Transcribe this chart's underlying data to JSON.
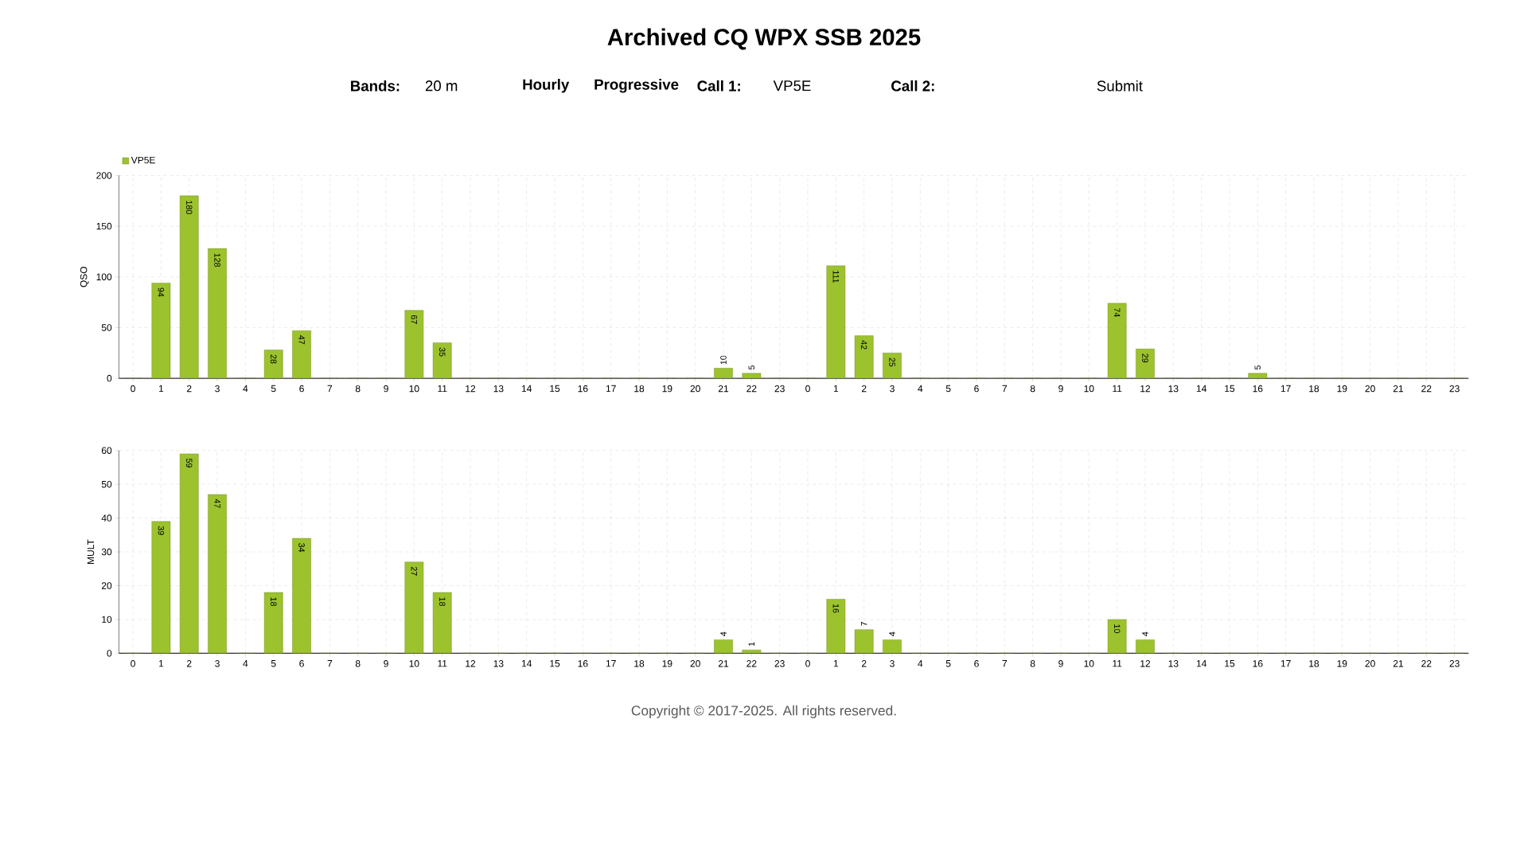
{
  "chart_data": [
    {
      "type": "bar",
      "title": "Archived CQ WPX SSB 2025",
      "ylabel": "QSO",
      "annotations": [
        "Bands:",
        "20 m",
        "Hourly",
        "Progressive",
        "Call 1:",
        "VP5E",
        "Call 2:",
        "Submit"
      ],
      "categories": [
        "0",
        "1",
        "2",
        "3",
        "4",
        "5",
        "6",
        "7",
        "8",
        "9",
        "10",
        "11",
        "12",
        "13",
        "14",
        "15",
        "16",
        "17",
        "18",
        "19",
        "20",
        "21",
        "22",
        "23",
        "0",
        "1",
        "2",
        "3",
        "4",
        "5",
        "6",
        "7",
        "8",
        "9",
        "10",
        "11",
        "12",
        "13",
        "14",
        "15",
        "16",
        "17",
        "18",
        "19",
        "20",
        "21",
        "22",
        "23"
      ],
      "series": [
        {
          "name": "VP5E",
          "color": "#9cc22e",
          "values": [
            0,
            94,
            180,
            128,
            0,
            28,
            47,
            0,
            0,
            0,
            67,
            35,
            0,
            0,
            0,
            0,
            0,
            0,
            0,
            0,
            0,
            10,
            5,
            0,
            0,
            111,
            42,
            25,
            0,
            0,
            0,
            0,
            0,
            0,
            0,
            74,
            29,
            0,
            0,
            0,
            5,
            0,
            0,
            0,
            0,
            0,
            0,
            0
          ],
          "value_labels": [
            null,
            "94",
            "180",
            "128",
            null,
            "28",
            "47",
            null,
            null,
            null,
            "67",
            "35",
            null,
            null,
            null,
            null,
            null,
            null,
            null,
            null,
            null,
            "10",
            "5",
            null,
            null,
            "111",
            "42",
            "25",
            null,
            null,
            null,
            null,
            null,
            null,
            null,
            "74",
            "29",
            null,
            null,
            null,
            "5",
            null,
            null,
            null,
            null,
            null,
            null,
            null
          ]
        }
      ],
      "ylim": [
        0,
        200
      ],
      "yticks": [
        0,
        50,
        100,
        150,
        200
      ],
      "grid": true,
      "legend": "top left"
    },
    {
      "type": "bar",
      "ylabel": "MULT",
      "annotations": [
        "Copyright © 2017-2025. All rights reserved."
      ],
      "categories": [
        "0",
        "1",
        "2",
        "3",
        "4",
        "5",
        "6",
        "7",
        "8",
        "9",
        "10",
        "11",
        "12",
        "13",
        "14",
        "15",
        "16",
        "17",
        "18",
        "19",
        "20",
        "21",
        "22",
        "23",
        "0",
        "1",
        "2",
        "3",
        "4",
        "5",
        "6",
        "7",
        "8",
        "9",
        "10",
        "11",
        "12",
        "13",
        "14",
        "15",
        "16",
        "17",
        "18",
        "19",
        "20",
        "21",
        "22",
        "23"
      ],
      "series": [
        {
          "color": "#9cc22e",
          "values": [
            0,
            39,
            59,
            47,
            0,
            18,
            34,
            0,
            0,
            0,
            27,
            18,
            0,
            0,
            0,
            0,
            0,
            0,
            0,
            0,
            0,
            4,
            1,
            0,
            0,
            16,
            7,
            4,
            0,
            0,
            0,
            0,
            0,
            0,
            0,
            10,
            4,
            0,
            0,
            0,
            0,
            0,
            0,
            0,
            0,
            0,
            0,
            0
          ],
          "value_labels": [
            null,
            "39",
            "59",
            "47",
            null,
            "18",
            "34",
            null,
            null,
            null,
            "27",
            "18",
            null,
            null,
            null,
            null,
            null,
            null,
            null,
            null,
            null,
            "4",
            "1",
            null,
            null,
            "16",
            "7",
            "4",
            null,
            null,
            null,
            null,
            null,
            null,
            null,
            "10",
            "4",
            null,
            null,
            null,
            null,
            null,
            null,
            null,
            null,
            null,
            null,
            null
          ]
        }
      ],
      "ylim": [
        0,
        60
      ],
      "yticks": [
        0,
        10,
        20,
        30,
        40,
        50,
        60
      ],
      "grid": true
    }
  ]
}
